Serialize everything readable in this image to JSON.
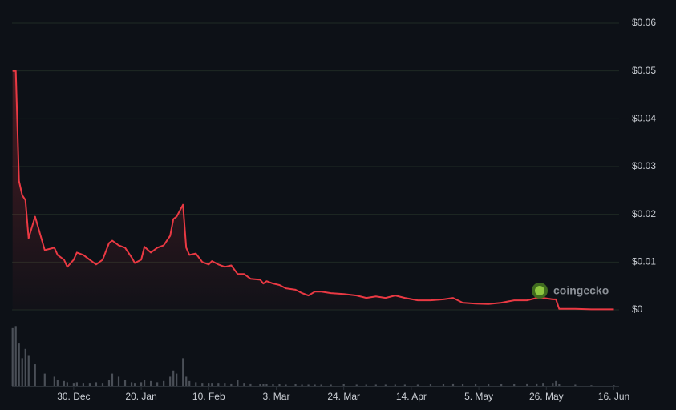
{
  "chart_data": {
    "type": "line",
    "color": "#ea3943",
    "x": [
      0,
      1,
      2,
      3,
      4,
      5,
      7,
      10,
      13,
      14,
      16,
      17,
      19,
      20,
      22,
      24,
      26,
      28,
      30,
      31,
      33,
      35,
      37,
      38,
      40,
      41,
      43,
      45,
      47,
      49,
      50,
      51,
      53,
      54,
      55,
      57,
      59,
      61,
      62,
      64,
      66,
      68,
      70,
      72,
      74,
      77,
      78,
      79,
      81,
      83,
      85,
      88,
      90,
      92,
      94,
      96,
      99,
      103,
      107,
      110,
      113,
      116,
      119,
      122,
      126,
      130,
      134,
      137,
      140,
      144,
      148,
      152,
      156,
      160,
      163,
      165,
      168,
      169,
      170,
      175,
      180,
      187
    ],
    "values": [
      0.05,
      0.05,
      0.027,
      0.024,
      0.023,
      0.015,
      0.0195,
      0.0125,
      0.013,
      0.0115,
      0.0105,
      0.009,
      0.0105,
      0.012,
      0.0115,
      0.0105,
      0.0095,
      0.0105,
      0.014,
      0.0145,
      0.0135,
      0.013,
      0.011,
      0.0098,
      0.0105,
      0.0132,
      0.012,
      0.013,
      0.0135,
      0.0155,
      0.019,
      0.0195,
      0.022,
      0.013,
      0.0115,
      0.0118,
      0.01,
      0.0095,
      0.0102,
      0.0095,
      0.009,
      0.0093,
      0.0075,
      0.0075,
      0.0065,
      0.0063,
      0.0055,
      0.006,
      0.0055,
      0.0052,
      0.0045,
      0.0042,
      0.0035,
      0.003,
      0.0038,
      0.0038,
      0.0035,
      0.0033,
      0.003,
      0.0025,
      0.0028,
      0.0025,
      0.003,
      0.0025,
      0.002,
      0.002,
      0.0022,
      0.0025,
      0.0015,
      0.0013,
      0.0012,
      0.0015,
      0.002,
      0.002,
      0.0025,
      0.0025,
      0.0022,
      0.0022,
      0.0002,
      0.0002,
      0.0001,
      0.0001
    ],
    "volume": {
      "color": "#4a4f57",
      "ylim": [
        0,
        100
      ],
      "values": [
        95,
        97,
        70,
        45,
        60,
        50,
        35,
        20,
        15,
        10,
        8,
        6,
        5,
        6,
        5,
        5,
        6,
        5,
        10,
        20,
        15,
        10,
        6,
        5,
        6,
        10,
        8,
        6,
        8,
        15,
        25,
        20,
        45,
        15,
        8,
        6,
        5,
        5,
        5,
        5,
        5,
        4,
        10,
        5,
        4,
        3,
        3,
        3,
        3,
        3,
        2,
        3,
        2,
        2,
        2,
        2,
        2,
        3,
        2,
        2,
        2,
        2,
        2,
        2,
        2,
        3,
        3,
        4,
        3,
        3,
        3,
        3,
        3,
        4,
        4,
        5,
        5,
        8,
        3,
        2,
        1,
        1
      ]
    },
    "xlim": [
      0,
      188
    ],
    "xticks": [
      {
        "value": 19,
        "label": "30. Dec"
      },
      {
        "value": 40,
        "label": "20. Jan"
      },
      {
        "value": 61,
        "label": "10. Feb"
      },
      {
        "value": 82,
        "label": "3. Mar"
      },
      {
        "value": 103,
        "label": "24. Mar"
      },
      {
        "value": 124,
        "label": "14. Apr"
      },
      {
        "value": 145,
        "label": "5. May"
      },
      {
        "value": 166,
        "label": "26. May"
      },
      {
        "value": 187,
        "label": "16. Jun"
      }
    ],
    "ylim": [
      0,
      0.06
    ],
    "yticks": [
      {
        "value": 0,
        "label": "$0"
      },
      {
        "value": 0.01,
        "label": "$0.01"
      },
      {
        "value": 0.02,
        "label": "$0.02"
      },
      {
        "value": 0.03,
        "label": "$0.03"
      },
      {
        "value": 0.04,
        "label": "$0.04"
      },
      {
        "value": 0.05,
        "label": "$0.05"
      },
      {
        "value": 0.06,
        "label": "$0.06"
      }
    ],
    "grid": true,
    "watermark": "coingecko"
  }
}
